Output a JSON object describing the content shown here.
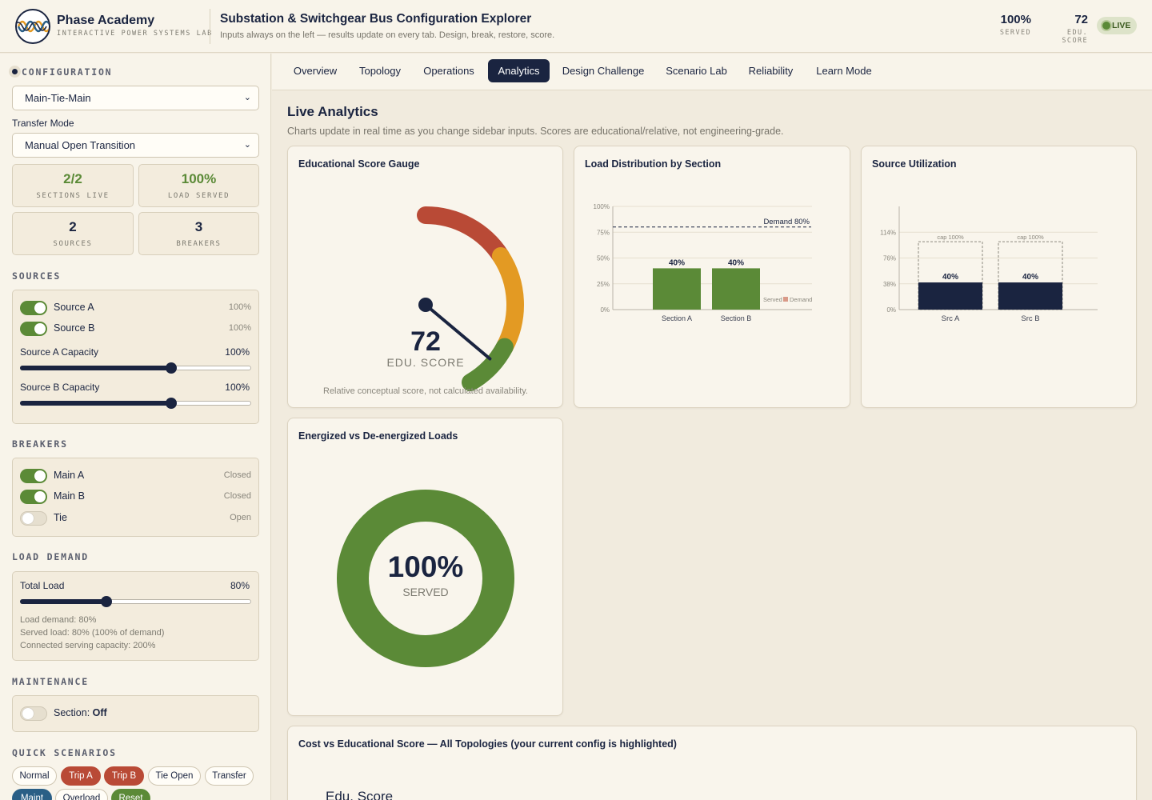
{
  "brand": {
    "name": "Phase Academy",
    "subtitle": "INTERACTIVE POWER SYSTEMS LAB"
  },
  "app": {
    "title": "Substation & Switchgear Bus Configuration Explorer",
    "subtitle": "Inputs always on the left — results update on every tab. Design, break, restore, score."
  },
  "header_kpis": [
    {
      "value": "100%",
      "label": "SERVED"
    },
    {
      "value": "72",
      "label": "EDU. SCORE"
    }
  ],
  "live_label": "LIVE",
  "sidebar": {
    "configuration_label": "CONFIGURATION",
    "topology_value": "Main-Tie-Main",
    "transfer_mode_label": "Transfer Mode",
    "transfer_mode_value": "Manual Open Transition",
    "stats": [
      {
        "value": "2/2",
        "label": "SECTIONS LIVE",
        "color": "#5b8a37"
      },
      {
        "value": "100%",
        "label": "LOAD SERVED",
        "color": "#5b8a37"
      },
      {
        "value": "2",
        "label": "SOURCES",
        "color": "#1a2440"
      },
      {
        "value": "3",
        "label": "BREAKERS",
        "color": "#1a2440"
      }
    ],
    "sources_label": "SOURCES",
    "sources": [
      {
        "name": "Source A",
        "value": "100%",
        "on": true
      },
      {
        "name": "Source B",
        "value": "100%",
        "on": true
      }
    ],
    "capacity_sliders": [
      {
        "label": "Source A Capacity",
        "value": "100%",
        "fraction": 0.655
      },
      {
        "label": "Source B Capacity",
        "value": "100%",
        "fraction": 0.655
      }
    ],
    "breakers_label": "BREAKERS",
    "breakers": [
      {
        "name": "Main A",
        "state": "Closed",
        "on": true
      },
      {
        "name": "Main B",
        "state": "Closed",
        "on": true
      },
      {
        "name": "Tie",
        "state": "Open",
        "on": false
      }
    ],
    "load_label": "LOAD DEMAND",
    "total_load_label": "Total Load",
    "total_load_value": "80%",
    "total_load_fraction": 0.375,
    "load_info": [
      "Load demand: 80%",
      "Served load: 80% (100% of demand)",
      "Connected serving capacity: 200%"
    ],
    "maintenance_label": "MAINTENANCE",
    "maintenance_prefix": "Section:",
    "maintenance_value": "Off",
    "quick_label": "QUICK SCENARIOS",
    "quick": [
      "Normal",
      "Trip A",
      "Trip B",
      "Tie Open",
      "Transfer",
      "Maint",
      "Overload",
      "Reset"
    ]
  },
  "tabs": [
    "Overview",
    "Topology",
    "Operations",
    "Analytics",
    "Design Challenge",
    "Scenario Lab",
    "Reliability",
    "Learn Mode"
  ],
  "active_tab": "Analytics",
  "main": {
    "title": "Live Analytics",
    "subtitle": "Charts update in real time as you change sidebar inputs. Scores are educational/relative, not engineering-grade."
  },
  "cards": {
    "gauge": {
      "title": "Educational Score Gauge",
      "value": "72",
      "label": "EDU. SCORE",
      "note": "Relative conceptual score, not calculated availability."
    },
    "load_dist": {
      "title": "Load Distribution by Section"
    },
    "source_util": {
      "title": "Source Utilization"
    },
    "energized": {
      "title": "Energized vs De-energized Loads",
      "value": "100%",
      "label": "SERVED"
    },
    "cost": {
      "title": "Cost vs Educational Score — All Topologies (your current config is highlighted)",
      "axis_label": "Edu. Score"
    }
  },
  "chart_data": [
    {
      "type": "gauge",
      "title": "Educational Score Gauge",
      "value": 72,
      "label": "EDU. SCORE",
      "bands": [
        {
          "color": "#b94a36"
        },
        {
          "color": "#e39a23"
        },
        {
          "color": "#5b8a37"
        }
      ]
    },
    {
      "type": "bar",
      "title": "Load Distribution by Section",
      "categories": [
        "Section A",
        "Section B"
      ],
      "values": [
        40,
        40
      ],
      "data_labels": [
        "40%",
        "40%"
      ],
      "ylim": [
        0,
        100
      ],
      "yticks": [
        "0%",
        "25%",
        "50%",
        "75%",
        "100%"
      ],
      "reference_line": {
        "label": "Demand 80%",
        "value": 80
      },
      "legend": [
        "Served",
        "Demand"
      ],
      "legend_position": "bottom-right",
      "colors": {
        "bar": "#5b8a37",
        "demand": "#d99a88"
      }
    },
    {
      "type": "bar",
      "title": "Source Utilization",
      "categories": [
        "Src A",
        "Src B"
      ],
      "values": [
        40,
        40
      ],
      "data_labels": [
        "40%",
        "40%"
      ],
      "capacity_labels": [
        "cap 100%",
        "cap 100%"
      ],
      "capacity": [
        100,
        100
      ],
      "ylim": [
        0,
        152
      ],
      "yticks": [
        "0%",
        "38%",
        "76%",
        "114%"
      ],
      "colors": {
        "bar": "#1a2440"
      }
    },
    {
      "type": "pie",
      "title": "Energized vs De-energized Loads",
      "values": [
        100,
        0
      ],
      "center_value": "100%",
      "center_label": "SERVED",
      "colors": [
        "#5b8a37",
        "#b94a36"
      ]
    }
  ]
}
